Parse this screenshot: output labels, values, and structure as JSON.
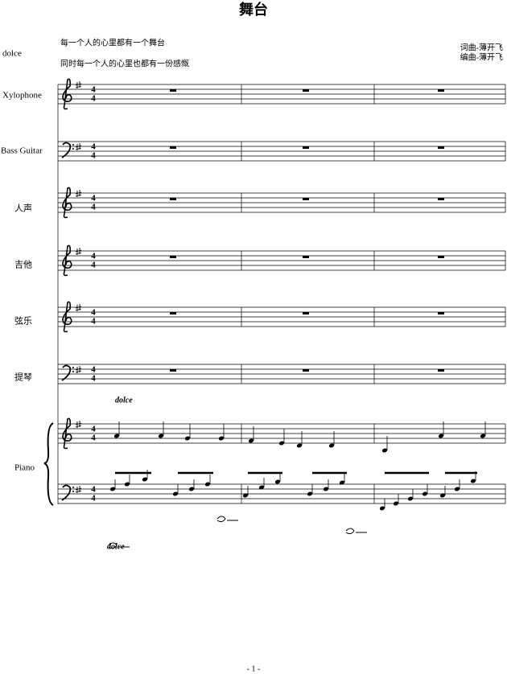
{
  "header": {
    "title": "舞台",
    "tempo_mark": "dolce",
    "lyrics": [
      "每一个人的心里都有一个舞台",
      "同时每一个人的心里也都有一份感慨"
    ],
    "credits": [
      "词曲-薄开飞",
      "编曲-薄开飞"
    ]
  },
  "time_signature": {
    "upper": "4",
    "lower": "4"
  },
  "instruments": [
    {
      "name": "Xylophone",
      "clefs": [
        "treble"
      ]
    },
    {
      "name": "Bass Guitar",
      "clefs": [
        "bass"
      ]
    },
    {
      "name": "人声",
      "clefs": [
        "treble"
      ]
    },
    {
      "name": "吉他",
      "clefs": [
        "treble"
      ]
    },
    {
      "name": "弦乐",
      "clefs": [
        "treble"
      ]
    },
    {
      "name": "提琴",
      "clefs": [
        "bass"
      ]
    },
    {
      "name": "Piano",
      "clefs": [
        "treble",
        "bass"
      ]
    }
  ],
  "dynamics": [
    "dolce",
    "dolce"
  ],
  "footer": {
    "page_number": "- 1 -"
  }
}
